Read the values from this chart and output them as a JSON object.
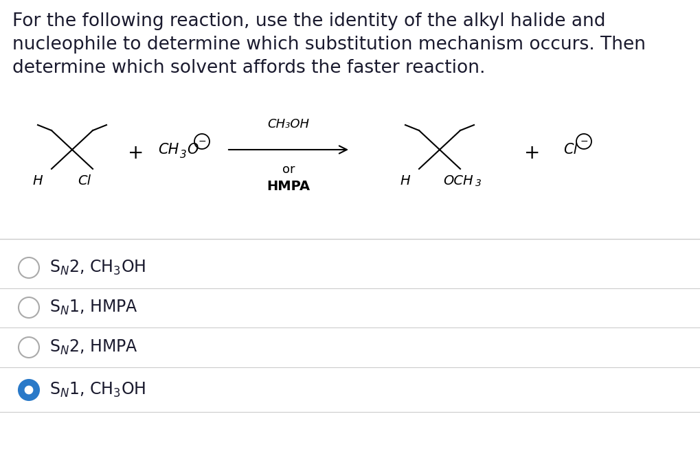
{
  "title_lines": [
    "For the following reaction, use the identity of the alkyl halide and",
    "nucleophile to determine which substitution mechanism occurs. Then",
    "determine which solvent affords the faster reaction."
  ],
  "background_color": "#ffffff",
  "text_color": "#1a1a2e",
  "divider_color": "#cccccc",
  "option_font_size": 17,
  "title_font_size": 19,
  "selected_color": "#2979c8",
  "circle_edge_color": "#aaaaaa",
  "options": [
    {
      "selected": false
    },
    {
      "selected": false
    },
    {
      "selected": false
    },
    {
      "selected": true
    }
  ]
}
